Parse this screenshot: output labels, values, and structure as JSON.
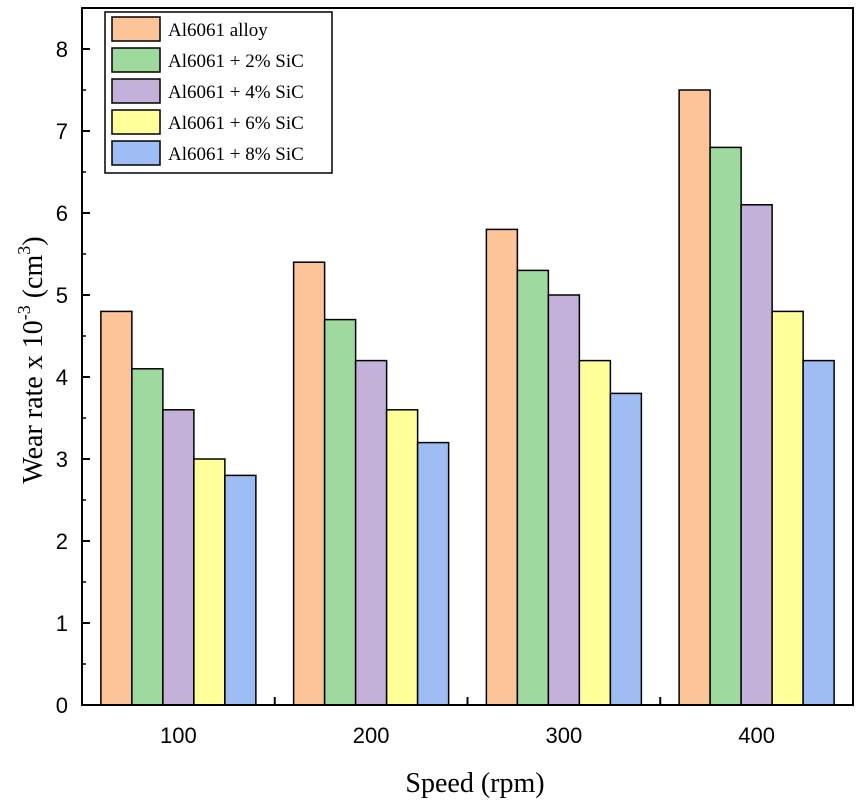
{
  "chart_data": {
    "type": "bar",
    "title": "",
    "xlabel": "Speed (rpm)",
    "ylabel": {
      "main": "Wear rate x 10",
      "sup1": "-3",
      "mid": " (cm",
      "sup2": "3",
      "end": ")"
    },
    "categories": [
      "100",
      "200",
      "300",
      "400"
    ],
    "ylim": [
      0,
      8.5
    ],
    "yticks": [
      "0",
      "1",
      "2",
      "3",
      "4",
      "5",
      "6",
      "7",
      "8"
    ],
    "legend_position": "top-left",
    "series": [
      {
        "name": "Al6061 alloy",
        "color": "#FCC497",
        "values": [
          4.8,
          5.4,
          5.8,
          7.5
        ]
      },
      {
        "name": "Al6061 + 2% SiC",
        "color": "#9ED99D",
        "values": [
          4.1,
          4.7,
          5.3,
          6.8
        ]
      },
      {
        "name": "Al6061 + 4% SiC",
        "color": "#C4B1D9",
        "values": [
          3.6,
          4.2,
          5.0,
          6.1
        ]
      },
      {
        "name": "Al6061 + 6% SiC",
        "color": "#FFFF99",
        "values": [
          3.0,
          3.6,
          4.2,
          4.8
        ]
      },
      {
        "name": "Al6061 + 8% SiC",
        "color": "#9EBDF5",
        "values": [
          2.8,
          3.2,
          3.8,
          4.2
        ]
      }
    ]
  }
}
